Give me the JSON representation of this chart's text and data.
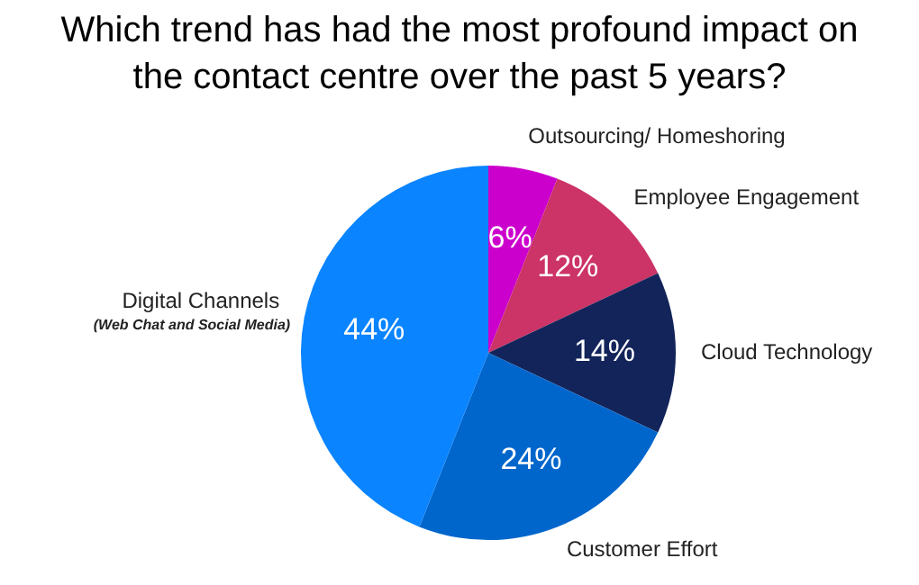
{
  "chart_data": {
    "type": "pie",
    "title": "Which trend has had the most profound impact on the contact centre over the past 5 years?",
    "categories": [
      "Outsourcing/ Homeshoring",
      "Employee Engagement",
      "Cloud Technology",
      "Customer Effort",
      "Digital Channels\n(Web Chat and Social Media)"
    ],
    "values": [
      6,
      12,
      14,
      24,
      44
    ],
    "colors": [
      "#cc00cc",
      "#cc3366",
      "#13245a",
      "#0066cc",
      "#0a84ff"
    ],
    "value_labels": [
      "6%",
      "12%",
      "14%",
      "24%",
      "44%"
    ],
    "legend": false
  }
}
